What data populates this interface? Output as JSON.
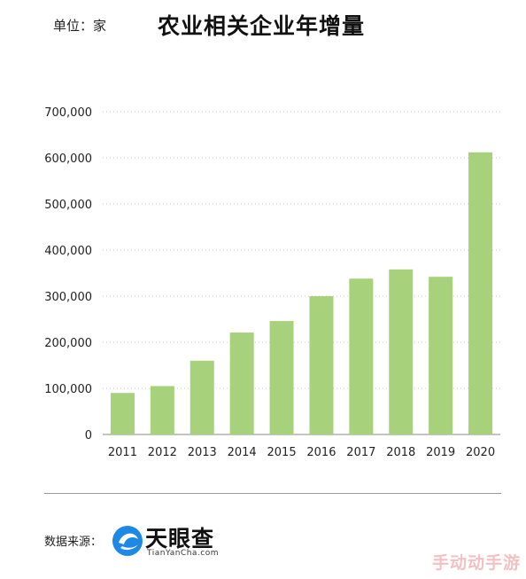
{
  "header": {
    "unit": "单位：家",
    "title": "农业相关企业年增量"
  },
  "chart_data": {
    "type": "bar",
    "title": "农业相关企业年增量",
    "unit": "家",
    "categories": [
      "2011",
      "2012",
      "2013",
      "2014",
      "2015",
      "2016",
      "2017",
      "2018",
      "2019",
      "2020"
    ],
    "values": [
      90000,
      105000,
      160000,
      221000,
      246000,
      300000,
      338000,
      358000,
      342000,
      612000
    ],
    "ylim": [
      0,
      700000
    ],
    "yticks": [
      0,
      100000,
      200000,
      300000,
      400000,
      500000,
      600000,
      700000
    ],
    "ytick_labels": [
      "0",
      "100,000",
      "200,000",
      "300,000",
      "400,000",
      "500,000",
      "600,000",
      "700,000"
    ],
    "grid": true,
    "bar_color": "#a8d17c"
  },
  "footer": {
    "source_label": "数据来源：",
    "logo_name": "天眼查",
    "logo_url": "TianYanCha.com",
    "logo_color": "#1e88e5"
  },
  "watermark": "手动动手游"
}
